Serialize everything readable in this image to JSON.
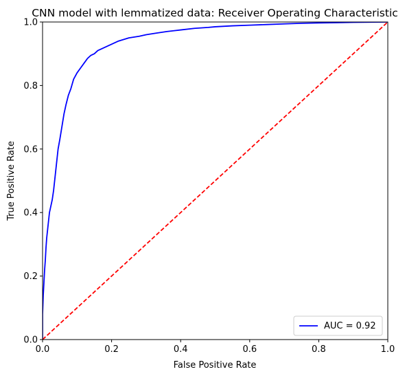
{
  "chart_data": {
    "type": "line",
    "title": "CNN model with lemmatized data: Receiver Operating Characteristic",
    "xlabel": "False Positive Rate",
    "ylabel": "True Positive Rate",
    "xlim": [
      0,
      1
    ],
    "ylim": [
      0,
      1
    ],
    "xticks": [
      "0.0",
      "0.2",
      "0.4",
      "0.6",
      "0.8",
      "1.0"
    ],
    "yticks": [
      "0.0",
      "0.2",
      "0.4",
      "0.6",
      "0.8",
      "1.0"
    ],
    "grid": false,
    "legend_placement": "lower-right",
    "series": [
      {
        "name": "AUC = 0.92",
        "color": "#0000ff",
        "style": "solid",
        "x": [
          0.0,
          0.0,
          0.002,
          0.004,
          0.006,
          0.008,
          0.01,
          0.012,
          0.015,
          0.018,
          0.02,
          0.024,
          0.028,
          0.032,
          0.036,
          0.04,
          0.045,
          0.05,
          0.056,
          0.062,
          0.068,
          0.075,
          0.082,
          0.09,
          0.1,
          0.11,
          0.12,
          0.13,
          0.14,
          0.15,
          0.16,
          0.18,
          0.2,
          0.22,
          0.25,
          0.28,
          0.3,
          0.33,
          0.36,
          0.4,
          0.44,
          0.48,
          0.5,
          0.55,
          0.6,
          0.65,
          0.7,
          0.75,
          0.8,
          0.85,
          0.9,
          0.95,
          1.0
        ],
        "y": [
          0.0,
          0.08,
          0.14,
          0.18,
          0.22,
          0.25,
          0.29,
          0.32,
          0.35,
          0.38,
          0.4,
          0.42,
          0.44,
          0.47,
          0.51,
          0.55,
          0.6,
          0.63,
          0.67,
          0.71,
          0.74,
          0.77,
          0.79,
          0.82,
          0.84,
          0.855,
          0.87,
          0.885,
          0.895,
          0.9,
          0.91,
          0.92,
          0.93,
          0.94,
          0.95,
          0.955,
          0.96,
          0.965,
          0.97,
          0.975,
          0.98,
          0.983,
          0.985,
          0.988,
          0.99,
          0.992,
          0.994,
          0.996,
          0.997,
          0.998,
          0.999,
          0.9995,
          1.0
        ]
      },
      {
        "name": "",
        "color": "#ff0000",
        "style": "dashed",
        "x": [
          0.0,
          1.0
        ],
        "y": [
          0.0,
          1.0
        ]
      }
    ],
    "legend": {
      "label": "AUC = 0.92",
      "color": "#0000ff"
    }
  }
}
